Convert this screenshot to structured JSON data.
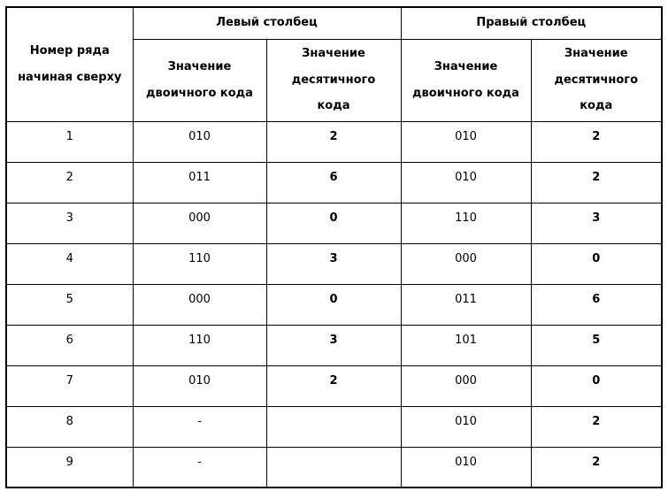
{
  "table": {
    "colors": {
      "border": "#000000",
      "text": "#000000",
      "background": "#ffffff"
    },
    "header": {
      "row_number_label": "Номер ряда\nначиная сверху",
      "left_group_label": "Левый столбец",
      "right_group_label": "Правый столбец",
      "binary_label": "Значение\nдвоичного кода",
      "decimal_label": "Значение\nдесятичного\nкода"
    },
    "rows": [
      {
        "num": "1",
        "left_bin": "010",
        "left_dec": "2",
        "right_bin": "010",
        "right_dec": "2"
      },
      {
        "num": "2",
        "left_bin": "011",
        "left_dec": "6",
        "right_bin": "010",
        "right_dec": "2"
      },
      {
        "num": "3",
        "left_bin": "000",
        "left_dec": "0",
        "right_bin": "110",
        "right_dec": "3"
      },
      {
        "num": "4",
        "left_bin": "110",
        "left_dec": "3",
        "right_bin": "000",
        "right_dec": "0"
      },
      {
        "num": "5",
        "left_bin": "000",
        "left_dec": "0",
        "right_bin": "011",
        "right_dec": "6"
      },
      {
        "num": "6",
        "left_bin": "110",
        "left_dec": "3",
        "right_bin": "101",
        "right_dec": "5"
      },
      {
        "num": "7",
        "left_bin": "010",
        "left_dec": "2",
        "right_bin": "000",
        "right_dec": "0"
      },
      {
        "num": "8",
        "left_bin": "-",
        "left_dec": "",
        "right_bin": "010",
        "right_dec": "2"
      },
      {
        "num": "9",
        "left_bin": "-",
        "left_dec": "",
        "right_bin": "010",
        "right_dec": "2"
      }
    ]
  }
}
